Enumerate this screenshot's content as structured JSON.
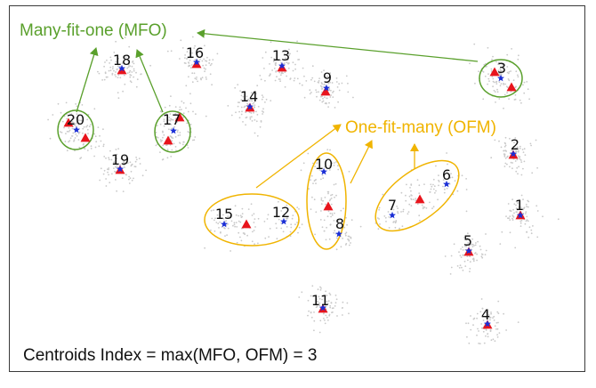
{
  "colors": {
    "mfo": "#5aa02c",
    "ofm": "#f0b400",
    "triangle": "#e8141c",
    "star": "#1b2fd6",
    "noise": "#c9c9c9",
    "text": "#111111"
  },
  "labels": {
    "mfo": "Many-fit-one (MFO)",
    "ofm": "One-fit-many (OFM)",
    "centroid_index": "Centroids Index = max(MFO, OFM) = 3"
  },
  "clusters": [
    {
      "id": "1",
      "markers": [
        "triangle",
        "star"
      ]
    },
    {
      "id": "2",
      "markers": [
        "triangle",
        "star"
      ]
    },
    {
      "id": "3",
      "markers": [
        "triangle",
        "star",
        "triangle"
      ]
    },
    {
      "id": "4",
      "markers": [
        "triangle",
        "star"
      ]
    },
    {
      "id": "5",
      "markers": [
        "triangle",
        "star"
      ]
    },
    {
      "id": "6",
      "markers": [
        "star"
      ]
    },
    {
      "id": "7",
      "markers": [
        "star"
      ]
    },
    {
      "id": "8",
      "markers": [
        "star"
      ]
    },
    {
      "id": "9",
      "markers": [
        "triangle",
        "star"
      ]
    },
    {
      "id": "10",
      "markers": [
        "star"
      ]
    },
    {
      "id": "11",
      "markers": [
        "triangle",
        "star"
      ]
    },
    {
      "id": "12",
      "markers": [
        "star"
      ]
    },
    {
      "id": "13",
      "markers": [
        "triangle",
        "star"
      ]
    },
    {
      "id": "14",
      "markers": [
        "triangle",
        "star"
      ]
    },
    {
      "id": "15",
      "markers": [
        "star"
      ]
    },
    {
      "id": "16",
      "markers": [
        "triangle",
        "star"
      ]
    },
    {
      "id": "17",
      "markers": [
        "star",
        "triangle",
        "triangle"
      ]
    },
    {
      "id": "18",
      "markers": [
        "triangle",
        "star"
      ]
    },
    {
      "id": "19",
      "markers": [
        "triangle",
        "star"
      ]
    },
    {
      "id": "20",
      "markers": [
        "triangle",
        "star",
        "triangle"
      ]
    }
  ],
  "extra_triangles": [
    "between-15-12",
    "between-10-8",
    "between-7-6"
  ]
}
